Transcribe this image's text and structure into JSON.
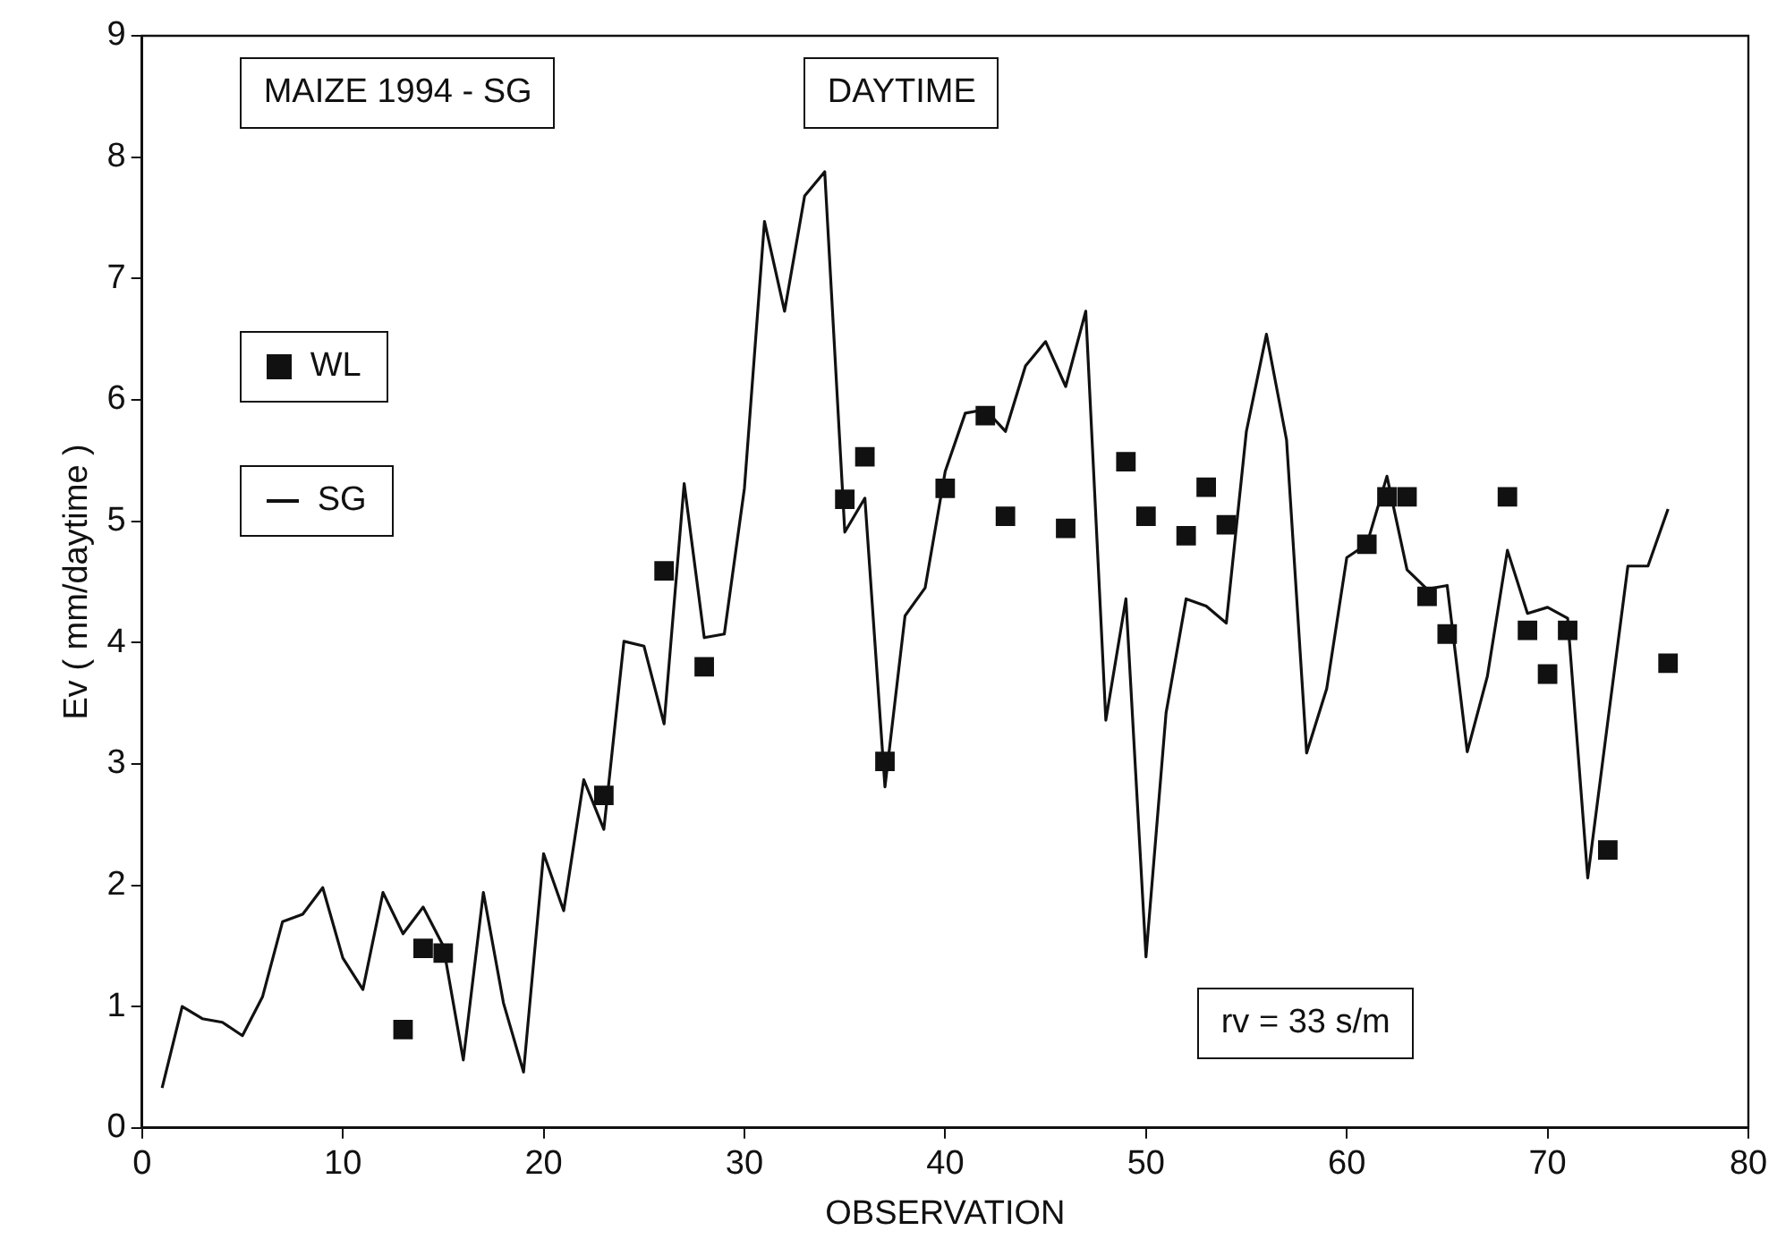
{
  "chart_data": {
    "type": "line",
    "xlabel": "OBSERVATION",
    "ylabel": "Ev ( mm/daytime )",
    "annotations": [
      "MAIZE 1994 - SG",
      "DAYTIME",
      "rv = 33 s/m"
    ],
    "xlim": [
      0,
      80
    ],
    "xticks": [
      0,
      10,
      20,
      30,
      40,
      50,
      60,
      70,
      80
    ],
    "ylim": [
      0,
      9
    ],
    "yticks": [
      0,
      1,
      2,
      3,
      4,
      5,
      6,
      7,
      8,
      9
    ],
    "grid": false,
    "legend": "top left",
    "series": [
      {
        "name": "WL",
        "type": "scatter",
        "marker": "square",
        "color": "#111111",
        "x": [
          13,
          14,
          15,
          23,
          26,
          28,
          35,
          36,
          37,
          40,
          42,
          43,
          46,
          49,
          50,
          52,
          53,
          54,
          61,
          62,
          63,
          64,
          65,
          68,
          69,
          70,
          71,
          73,
          76
        ],
        "values": [
          0.81,
          1.48,
          1.44,
          2.74,
          4.59,
          3.8,
          5.18,
          5.53,
          3.02,
          5.27,
          5.87,
          5.04,
          4.94,
          5.49,
          5.04,
          4.88,
          5.28,
          4.97,
          4.81,
          5.2,
          5.2,
          4.38,
          4.07,
          5.2,
          4.1,
          3.74,
          4.1,
          2.29,
          3.83
        ]
      },
      {
        "name": "SG",
        "type": "line",
        "marker": "none",
        "line_style": "solid",
        "color": "#111111",
        "x": [
          1,
          2,
          3,
          4,
          5,
          6,
          7,
          8,
          9,
          10,
          11,
          12,
          13,
          14,
          15,
          16,
          17,
          18,
          19,
          20,
          21,
          22,
          23,
          24,
          25,
          26,
          27,
          28,
          29,
          30,
          31,
          32,
          33,
          34,
          35,
          36,
          37,
          38,
          39,
          40,
          41,
          42,
          43,
          44,
          45,
          46,
          47,
          48,
          49,
          50,
          51,
          52,
          53,
          54,
          55,
          56,
          57,
          58,
          59,
          60,
          61,
          62,
          63,
          64,
          65,
          66,
          67,
          68,
          69,
          70,
          71,
          72,
          73,
          74,
          75,
          76
        ],
        "values": [
          0.33,
          1.0,
          0.9,
          0.87,
          0.76,
          1.08,
          1.7,
          1.76,
          1.98,
          1.4,
          1.14,
          1.94,
          1.6,
          1.82,
          1.5,
          0.56,
          1.94,
          1.03,
          0.46,
          2.26,
          1.79,
          2.87,
          2.46,
          4.01,
          3.97,
          3.33,
          5.31,
          4.04,
          4.07,
          5.27,
          7.47,
          6.73,
          7.68,
          7.88,
          4.91,
          5.19,
          2.81,
          4.22,
          4.45,
          5.41,
          5.89,
          5.92,
          5.74,
          6.28,
          6.48,
          6.11,
          6.73,
          3.36,
          4.36,
          1.41,
          3.42,
          4.36,
          4.3,
          4.16,
          5.74,
          6.54,
          5.67,
          3.09,
          3.62,
          4.7,
          4.81,
          5.37,
          4.6,
          4.44,
          4.47,
          3.1,
          3.72,
          4.76,
          4.24,
          4.29,
          4.2,
          2.06,
          3.35,
          4.63,
          4.63,
          5.1
        ]
      }
    ]
  }
}
